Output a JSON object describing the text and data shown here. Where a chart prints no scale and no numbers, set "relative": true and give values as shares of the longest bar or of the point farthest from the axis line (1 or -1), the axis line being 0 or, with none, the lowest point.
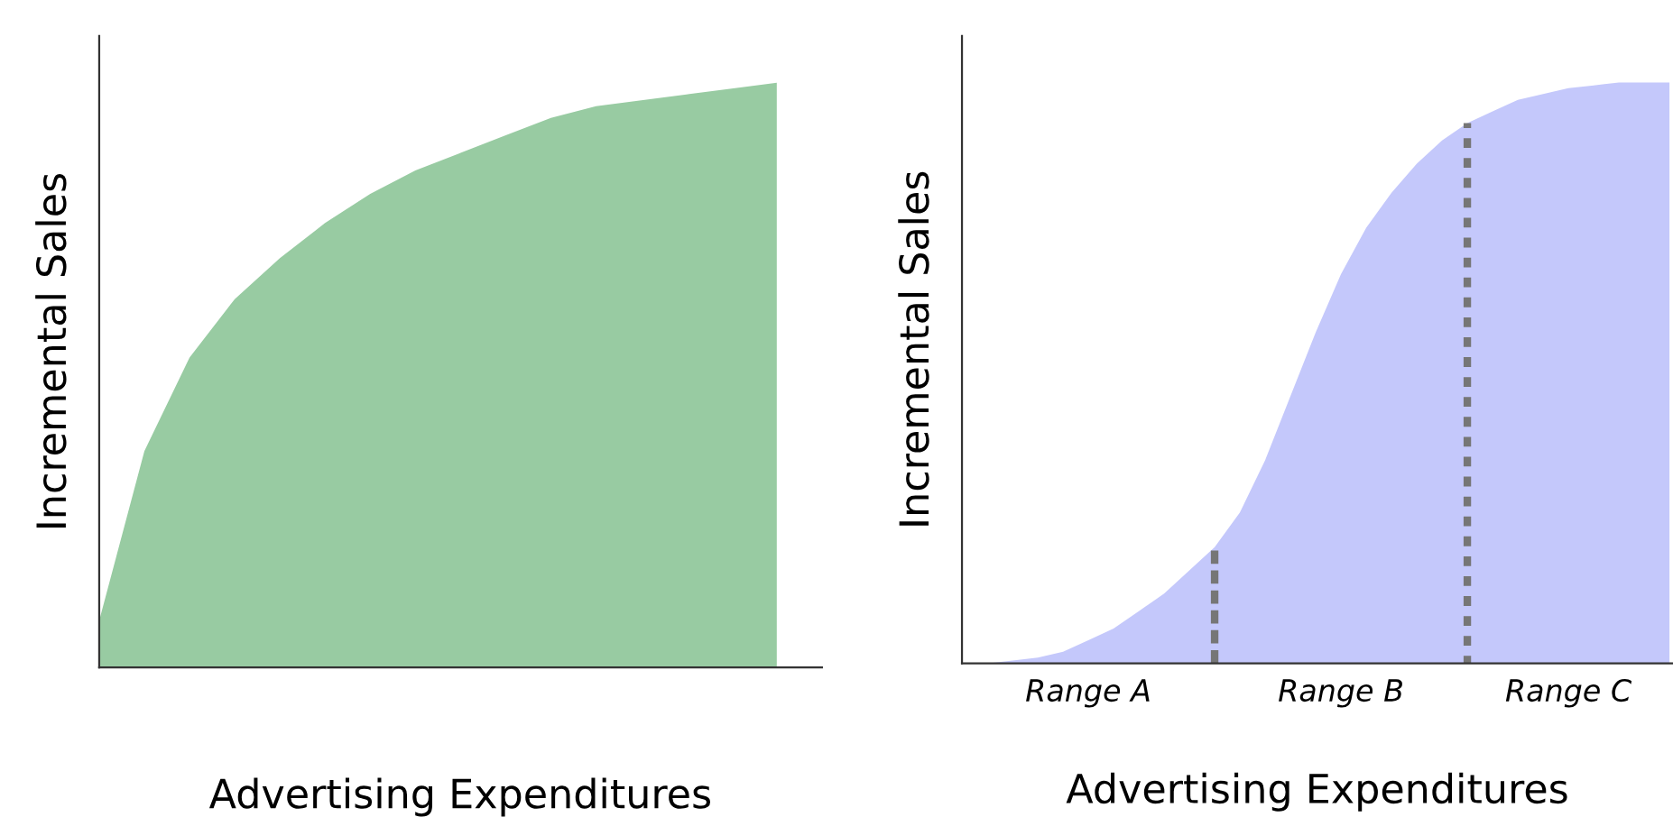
{
  "chart_data": [
    {
      "type": "area",
      "relative": true,
      "xlabel": "Advertising Expenditures",
      "ylabel": "Incremental Sales",
      "categories": [
        null,
        null,
        null,
        null,
        null,
        null,
        null,
        null,
        null,
        null,
        null,
        null,
        null,
        null,
        null,
        null,
        null
      ],
      "series": [
        {
          "color": "#98cba2",
          "values": [
            0.08,
            0.37,
            0.53,
            0.63,
            0.7,
            0.76,
            0.81,
            0.85,
            0.88,
            0.91,
            0.94,
            0.96,
            0.97,
            0.98,
            0.99,
            1.0,
            null
          ]
        }
      ]
    },
    {
      "type": "area",
      "relative": true,
      "xlabel": "Advertising Expenditures",
      "ylabel": "Incremental Sales",
      "categories": [
        null,
        null,
        null,
        null,
        null,
        "Range A",
        null,
        null,
        null,
        null,
        null,
        null,
        null,
        null,
        null,
        "Range B",
        null,
        null,
        null,
        null,
        null,
        null,
        null,
        null,
        "Range C",
        null,
        null,
        null,
        null
      ],
      "series": [
        {
          "color": "#c4c8fb",
          "values": [
            0.0,
            0.0,
            0.005,
            0.01,
            0.02,
            0.04,
            0.06,
            0.09,
            0.12,
            0.16,
            0.2,
            0.26,
            0.35,
            0.46,
            0.57,
            0.67,
            0.75,
            0.81,
            0.86,
            0.9,
            0.93,
            0.95,
            0.97,
            0.98,
            0.99,
            0.995,
            1.0,
            1.0,
            1.0
          ]
        },
        {
          "type": "bar",
          "line_style": "dotted",
          "color": "#767676",
          "values": [
            null,
            null,
            null,
            null,
            null,
            null,
            null,
            null,
            null,
            null,
            0.2,
            null,
            null,
            null,
            null,
            null,
            null,
            null,
            null,
            null,
            0.93,
            null,
            null,
            null,
            null,
            null,
            null,
            null,
            null
          ]
        }
      ]
    }
  ]
}
